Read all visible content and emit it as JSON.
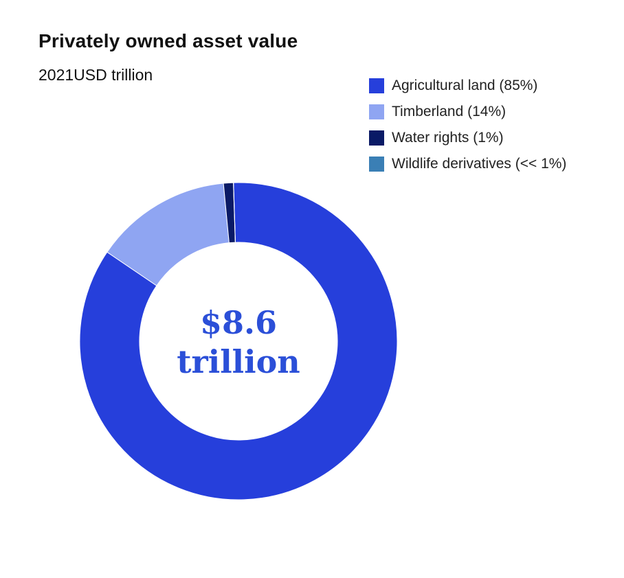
{
  "chart_data": {
    "type": "pie",
    "title": "Privately owned asset value",
    "subtitle": "2021USD trillion",
    "center_label": {
      "line1": "$8.6",
      "line2": "trillion",
      "color": "#2b4fd8"
    },
    "legend_position": "top-right",
    "slices": [
      {
        "label": "Agricultural land (85%)",
        "value": 85,
        "color": "#263fdb"
      },
      {
        "label": "Timberland (14%)",
        "value": 14,
        "color": "#8fa5f2"
      },
      {
        "label": "Water rights (1%)",
        "value": 1,
        "color": "#0a1a66"
      },
      {
        "label": "Wildlife derivatives (<< 1%)",
        "value": 0.01,
        "color": "#3a7fb5"
      }
    ]
  }
}
